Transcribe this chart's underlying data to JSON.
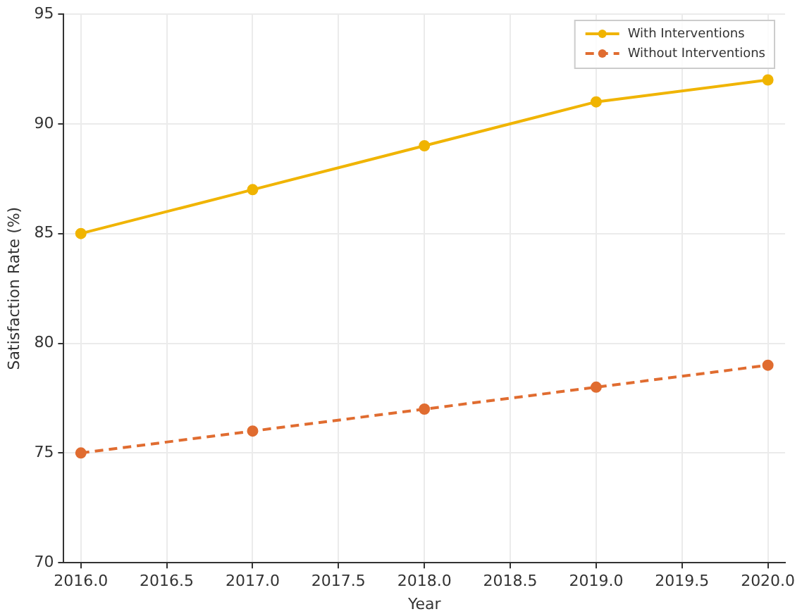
{
  "chart_data": {
    "type": "line",
    "xlabel": "Year",
    "ylabel": "Satisfaction Rate (%)",
    "x": [
      2016,
      2017,
      2018,
      2019,
      2020
    ],
    "series": [
      {
        "name": "With Interventions",
        "color": "#f0b400",
        "values": [
          85,
          87,
          89,
          91,
          92
        ],
        "line_style": "solid"
      },
      {
        "name": "Without Interventions",
        "color": "#e06c30",
        "values": [
          75,
          76,
          77,
          78,
          79
        ],
        "line_style": "dashed"
      }
    ],
    "xlim": [
      2015.9,
      2020.1
    ],
    "xticks": [
      {
        "value": 2016,
        "label": "2016.0"
      },
      {
        "value": 2016.5,
        "label": "2016.5"
      },
      {
        "value": 2017,
        "label": "2017.0"
      },
      {
        "value": 2017.5,
        "label": "2017.5"
      },
      {
        "value": 2018,
        "label": "2018.0"
      },
      {
        "value": 2018.5,
        "label": "2018.5"
      },
      {
        "value": 2019,
        "label": "2019.0"
      },
      {
        "value": 2019.5,
        "label": "2019.5"
      },
      {
        "value": 2020,
        "label": "2020.0"
      }
    ],
    "ylim": [
      70,
      95
    ],
    "yticks": [
      70,
      75,
      80,
      85,
      90,
      95
    ],
    "grid": true,
    "legend": "top right",
    "marker": "circle"
  }
}
